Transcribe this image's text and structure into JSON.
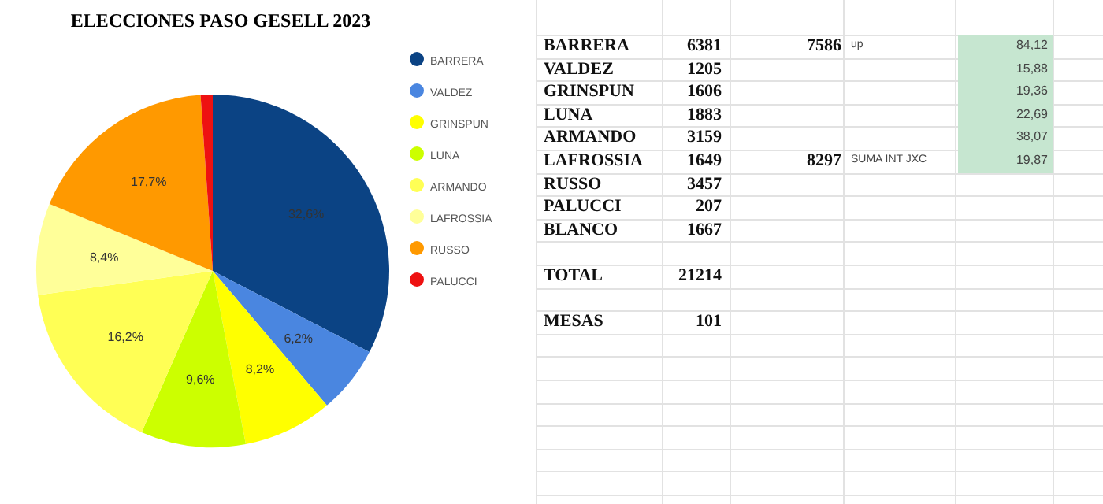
{
  "chart_data": [
    {
      "type": "pie",
      "title": "ELECCIONES PASO GESELL 2023",
      "categories": [
        "BARRERA",
        "VALDEZ",
        "GRINSPUN",
        "LUNA",
        "ARMANDO",
        "LAFROSSIA",
        "RUSSO",
        "PALUCCI"
      ],
      "values": [
        32.6,
        6.2,
        8.2,
        9.6,
        16.2,
        8.4,
        17.7,
        1.1
      ],
      "colors": [
        "#0b4384",
        "#4a86e0",
        "#ffff00",
        "#ccff00",
        "#ffff55",
        "#ffff99",
        "#ff9900",
        "#ee1111"
      ],
      "value_labels": [
        "32,6%",
        "6,2%",
        "8,2%",
        "9,6%",
        "16,2%",
        "8,4%",
        "17,7%",
        null
      ],
      "legend": "top right"
    },
    {
      "type": "other",
      "categories": [
        "BARRERA",
        "VALDEZ",
        "GRINSPUN",
        "LUNA",
        "ARMANDO",
        "LAFROSSIA",
        "RUSSO",
        "PALUCCI",
        "BLANCO",
        null,
        "TOTAL",
        null,
        "MESAS"
      ],
      "values": [
        6381,
        1205,
        1606,
        1883,
        3159,
        1649,
        3457,
        207,
        1667,
        null,
        21214,
        null,
        101
      ],
      "data_labels": true,
      "annotations": [
        "7586",
        "up",
        "8297",
        "SUMA INT JXC",
        "84,12",
        "15,88",
        "19,36",
        "22,69",
        "38,07",
        "19,87"
      ]
    }
  ]
}
